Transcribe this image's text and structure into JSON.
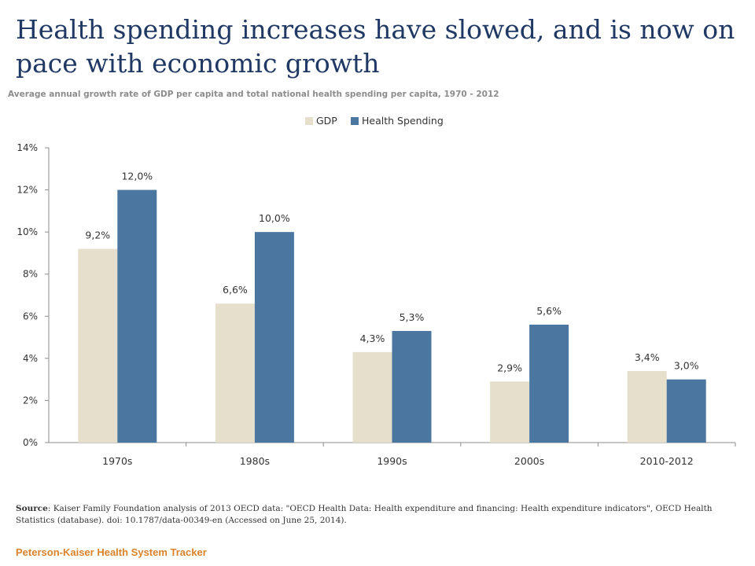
{
  "title": "Health spending increases have slowed, and is now on pace with economic growth",
  "subtitle": "Average annual growth rate of GDP per capita and total national health spending per capita, 1970 - 2012",
  "source_label": "Source",
  "source_text": ": Kaiser Family Foundation analysis of 2013 OECD data: \"OECD Health Data: Health expenditure and financing: Health expenditure indicators\", OECD Health Statistics (database). doi: 10.1787/data-00349-en (Accessed on June 25, 2014).",
  "footer": "Peterson-Kaiser Health System Tracker",
  "colors": {
    "gdp": "#e6dfcc",
    "health": "#4a76a0",
    "title": "#1f3864",
    "footer": "#d9822b"
  },
  "chart_data": {
    "type": "bar",
    "categories": [
      "1970s",
      "1980s",
      "1990s",
      "2000s",
      "2010-2012"
    ],
    "series": [
      {
        "name": "GDP",
        "values": [
          9.2,
          6.6,
          4.3,
          2.9,
          3.4
        ],
        "labels": [
          "9,2%",
          "6,6%",
          "4,3%",
          "2,9%",
          "3,4%"
        ],
        "color": "#e6dfcc"
      },
      {
        "name": "Health Spending",
        "values": [
          12.0,
          10.0,
          5.3,
          5.6,
          3.0
        ],
        "labels": [
          "12,0%",
          "10,0%",
          "5,3%",
          "5,6%",
          "3,0%"
        ],
        "color": "#4a76a0"
      }
    ],
    "ylim": [
      0,
      14
    ],
    "yticks": [
      0,
      2,
      4,
      6,
      8,
      10,
      12,
      14
    ],
    "ytick_labels": [
      "0%",
      "2%",
      "4%",
      "6%",
      "8%",
      "10%",
      "12%",
      "14%"
    ],
    "legend_position": "top-center",
    "grid": false
  }
}
